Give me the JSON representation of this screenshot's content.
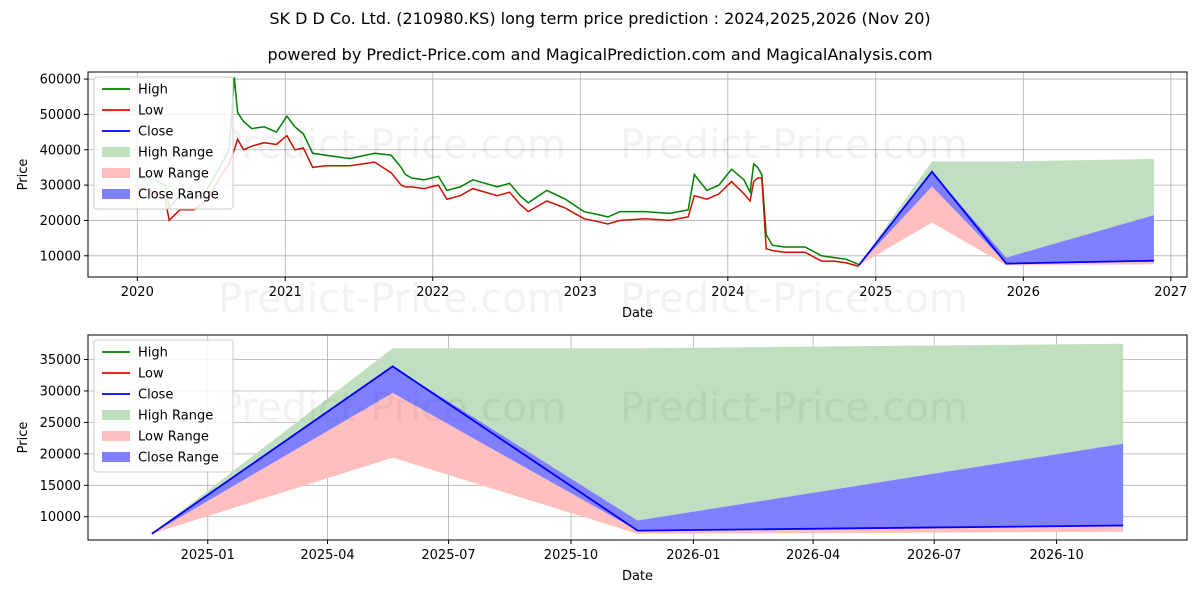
{
  "header": {
    "title": "SK D D Co. Ltd. (210980.KS) long term price prediction : 2024,2025,2026 (Nov 20)",
    "subtitle": "powered by Predict-Price.com and MagicalPrediction.com and MagicalAnalysis.com"
  },
  "watermark": "Predict-Price.com",
  "colors": {
    "high": "#008000",
    "low": "#ff0000",
    "close": "#0000ff",
    "high_range": "#c0dfc0",
    "low_range": "#ffbfbf",
    "close_range": "#8080ff",
    "history_low": "#cc1100",
    "grid": "#b0b0b0"
  },
  "chart_data": [
    {
      "type": "line",
      "title": "",
      "xlabel": "Date",
      "ylabel": "Price",
      "xlim": [
        "2019-09-01",
        "2027-02-10"
      ],
      "ylim": [
        4000,
        62000
      ],
      "x_ticks": [
        "2020",
        "2021",
        "2022",
        "2023",
        "2024",
        "2025",
        "2026",
        "2027"
      ],
      "x_tick_dates": [
        "2020-01-01",
        "2021-01-01",
        "2022-01-01",
        "2023-01-01",
        "2024-01-01",
        "2025-01-01",
        "2026-01-01",
        "2027-01-01"
      ],
      "y_ticks": [
        10000,
        20000,
        30000,
        40000,
        50000,
        60000
      ],
      "grid": true,
      "legend": {
        "position": "top-left",
        "entries": [
          "High",
          "Low",
          "Close",
          "High Range",
          "Low Range",
          "Close Range"
        ]
      },
      "history": {
        "dates": [
          "2020-01-02",
          "2020-02-01",
          "2020-03-10",
          "2020-03-20",
          "2020-04-15",
          "2020-05-20",
          "2020-06-20",
          "2020-07-25",
          "2020-08-15",
          "2020-08-28",
          "2020-09-05",
          "2020-09-20",
          "2020-10-10",
          "2020-11-10",
          "2020-12-10",
          "2021-01-05",
          "2021-01-25",
          "2021-02-15",
          "2021-03-10",
          "2021-04-10",
          "2021-06-10",
          "2021-08-10",
          "2021-09-20",
          "2021-10-15",
          "2021-10-25",
          "2021-11-10",
          "2021-12-10",
          "2022-01-15",
          "2022-02-05",
          "2022-03-10",
          "2022-04-10",
          "2022-06-10",
          "2022-07-10",
          "2022-08-05",
          "2022-08-25",
          "2022-10-10",
          "2022-11-25",
          "2023-01-10",
          "2023-02-20",
          "2023-03-10",
          "2023-04-10",
          "2023-06-10",
          "2023-08-10",
          "2023-09-25",
          "2023-10-10",
          "2023-11-10",
          "2023-12-10",
          "2024-01-10",
          "2024-02-10",
          "2024-02-25",
          "2024-03-05",
          "2024-03-15",
          "2024-03-25",
          "2024-04-05",
          "2024-04-20",
          "2024-05-20",
          "2024-07-10",
          "2024-08-20",
          "2024-09-20",
          "2024-10-20",
          "2024-11-20"
        ],
        "high": [
          32000,
          32000,
          30000,
          23500,
          27000,
          26000,
          28500,
          35500,
          40000,
          60500,
          50500,
          48000,
          46000,
          46500,
          45000,
          49500,
          46500,
          44500,
          39000,
          38500,
          37500,
          39000,
          38500,
          35000,
          33000,
          32000,
          31500,
          32500,
          28500,
          29500,
          31500,
          29500,
          30500,
          27000,
          25000,
          28500,
          26000,
          22500,
          21500,
          21000,
          22500,
          22500,
          22000,
          23000,
          33000,
          28500,
          30000,
          34500,
          31500,
          28000,
          36000,
          35000,
          33000,
          16000,
          13000,
          12500,
          12500,
          10000,
          9500,
          9000,
          7500
        ],
        "low": [
          29000,
          28500,
          26000,
          20000,
          23000,
          23000,
          25500,
          32500,
          36000,
          40000,
          43000,
          40000,
          41000,
          42000,
          41500,
          44000,
          40000,
          40500,
          35000,
          35500,
          35500,
          36500,
          33500,
          30000,
          29500,
          29500,
          29000,
          30000,
          26000,
          27000,
          29000,
          27000,
          28000,
          24500,
          22500,
          25500,
          23500,
          20500,
          19500,
          19000,
          20000,
          20500,
          20000,
          21000,
          27000,
          26000,
          27500,
          31000,
          27500,
          25500,
          31000,
          32000,
          32000,
          12000,
          11500,
          11000,
          11000,
          8500,
          8500,
          8000,
          7000
        ]
      },
      "forecast": {
        "dates": [
          "2024-11-20",
          "2025-05-20",
          "2025-11-20",
          "2026-11-20"
        ],
        "close": [
          7300,
          33800,
          7800,
          8600
        ],
        "high_range_upper": [
          7300,
          36700,
          36700,
          37400
        ],
        "high_range_lower": [
          7300,
          33800,
          9500,
          21500
        ],
        "close_range_upper": [
          7300,
          33800,
          9500,
          21500
        ],
        "close_range_lower": [
          7300,
          29600,
          7800,
          8600
        ],
        "low_range_upper": [
          7300,
          29600,
          7800,
          8600
        ],
        "low_range_lower": [
          7300,
          19400,
          7300,
          7600
        ]
      }
    },
    {
      "type": "area",
      "title": "",
      "xlabel": "Date",
      "ylabel": "Price",
      "xlim": [
        "2024-10-03",
        "2027-01-07"
      ],
      "ylim": [
        6300,
        38900
      ],
      "x_ticks": [
        "2025-01",
        "2025-04",
        "2025-07",
        "2025-10",
        "2026-01",
        "2026-04",
        "2026-07",
        "2026-10"
      ],
      "x_tick_dates": [
        "2025-01-01",
        "2025-04-01",
        "2025-07-01",
        "2025-10-01",
        "2026-01-01",
        "2026-04-01",
        "2026-07-01",
        "2026-10-01"
      ],
      "y_ticks": [
        10000,
        15000,
        20000,
        25000,
        30000,
        35000
      ],
      "grid": true,
      "legend": {
        "position": "top-left",
        "entries": [
          "High",
          "Low",
          "Close",
          "High Range",
          "Low Range",
          "Close Range"
        ]
      },
      "forecast": {
        "dates": [
          "2024-11-20",
          "2025-05-20",
          "2025-11-20",
          "2026-11-20"
        ],
        "close": [
          7300,
          33900,
          7800,
          8600
        ],
        "high_range_upper": [
          7300,
          36800,
          36800,
          37500
        ],
        "high_range_lower": [
          7300,
          33900,
          9400,
          21600
        ],
        "close_range_upper": [
          7300,
          33900,
          9400,
          21600
        ],
        "close_range_lower": [
          7300,
          29700,
          7800,
          8600
        ],
        "low_range_upper": [
          7300,
          29700,
          7800,
          8600
        ],
        "low_range_lower": [
          7300,
          19400,
          7300,
          7600
        ]
      }
    }
  ]
}
